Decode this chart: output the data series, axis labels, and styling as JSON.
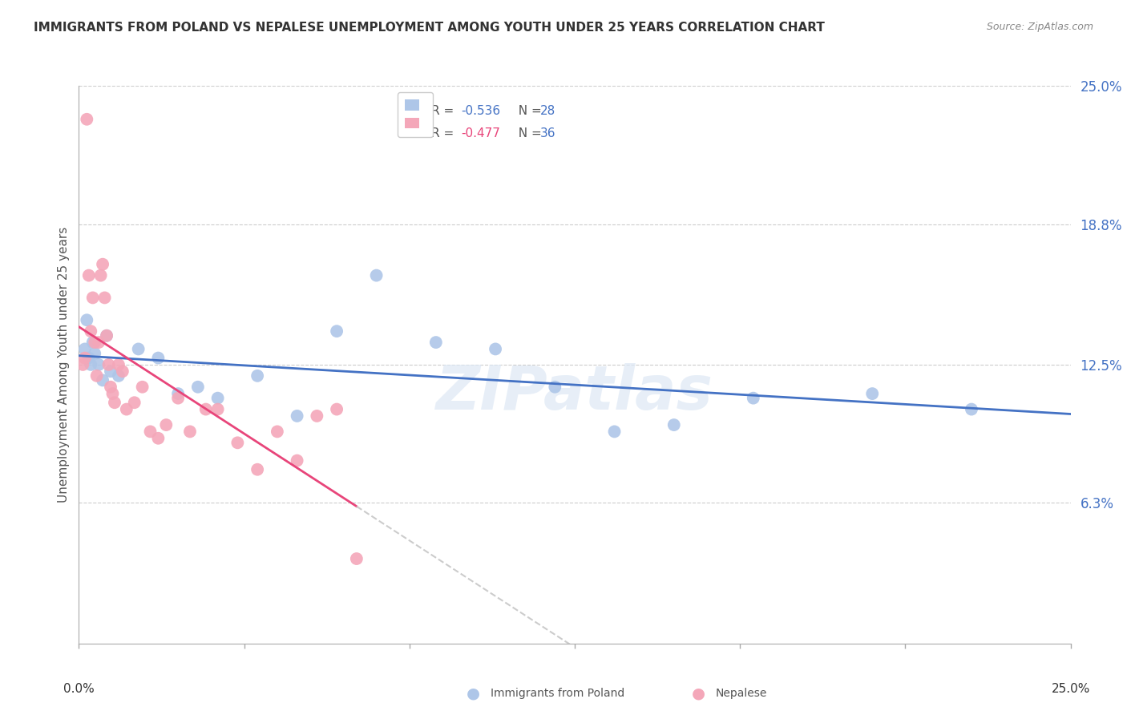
{
  "title": "IMMIGRANTS FROM POLAND VS NEPALESE UNEMPLOYMENT AMONG YOUTH UNDER 25 YEARS CORRELATION CHART",
  "source": "Source: ZipAtlas.com",
  "ylabel": "Unemployment Among Youth under 25 years",
  "xlim": [
    0.0,
    25.0
  ],
  "ylim": [
    0.0,
    25.0
  ],
  "yticks": [
    6.3,
    12.5,
    18.8,
    25.0
  ],
  "ytick_labels": [
    "6.3%",
    "12.5%",
    "18.8%",
    "25.0%"
  ],
  "xtick_positions": [
    0,
    4.167,
    8.333,
    12.5,
    16.667,
    20.833,
    25.0
  ],
  "grid_color": "#cccccc",
  "background_color": "#ffffff",
  "poland_color": "#aec6e8",
  "nepal_color": "#f4a7b9",
  "poland_line_color": "#4472c4",
  "nepal_line_color": "#e8457a",
  "legend_r_poland": "-0.536",
  "legend_n_poland": "28",
  "legend_r_nepal": "-0.477",
  "legend_n_nepal": "36",
  "poland_x": [
    0.15,
    0.25,
    0.35,
    0.5,
    0.7,
    1.0,
    1.5,
    2.0,
    2.5,
    3.0,
    3.5,
    4.5,
    5.5,
    6.5,
    7.5,
    9.0,
    10.5,
    12.0,
    13.5,
    15.0,
    17.0,
    20.0,
    22.5,
    0.2,
    0.3,
    0.4,
    0.6,
    0.8
  ],
  "poland_y": [
    13.2,
    12.8,
    13.5,
    12.5,
    13.8,
    12.0,
    13.2,
    12.8,
    11.2,
    11.5,
    11.0,
    12.0,
    10.2,
    14.0,
    16.5,
    13.5,
    13.2,
    11.5,
    9.5,
    9.8,
    11.0,
    11.2,
    10.5,
    14.5,
    12.5,
    13.0,
    11.8,
    12.2
  ],
  "nepal_x": [
    0.1,
    0.15,
    0.2,
    0.25,
    0.3,
    0.35,
    0.4,
    0.45,
    0.5,
    0.55,
    0.6,
    0.65,
    0.7,
    0.75,
    0.8,
    0.85,
    0.9,
    1.0,
    1.1,
    1.2,
    1.4,
    1.6,
    1.8,
    2.0,
    2.2,
    2.5,
    2.8,
    3.2,
    3.5,
    4.0,
    4.5,
    5.0,
    5.5,
    6.0,
    6.5,
    7.0
  ],
  "nepal_y": [
    12.5,
    12.8,
    23.5,
    16.5,
    14.0,
    15.5,
    13.5,
    12.0,
    13.5,
    16.5,
    17.0,
    15.5,
    13.8,
    12.5,
    11.5,
    11.2,
    10.8,
    12.5,
    12.2,
    10.5,
    10.8,
    11.5,
    9.5,
    9.2,
    9.8,
    11.0,
    9.5,
    10.5,
    10.5,
    9.0,
    7.8,
    9.5,
    8.2,
    10.2,
    10.5,
    3.8
  ],
  "watermark": "ZIPatlas",
  "marker_size": 130
}
